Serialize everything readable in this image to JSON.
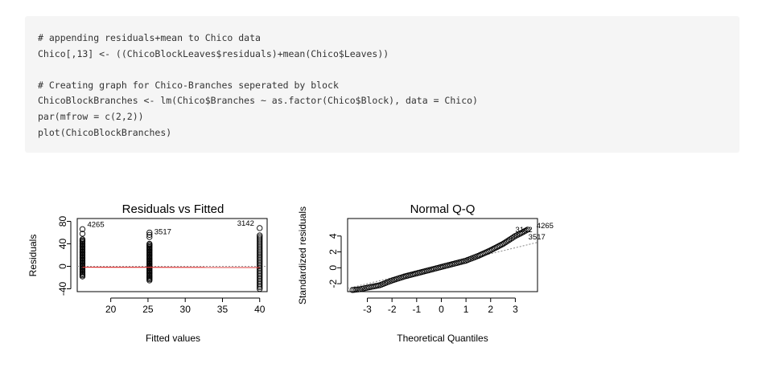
{
  "code": {
    "lines": [
      "# appending residuals+mean to Chico data",
      "Chico[,13] <- ((ChicoBlockLeaves$residuals)+mean(Chico$Leaves))",
      "",
      "# Creating graph for Chico-Branches seperated by block",
      "ChicoBlockBranches <- lm(Chico$Branches ~ as.factor(Chico$Block), data = Chico)",
      "par(mfrow = c(2,2))",
      "plot(ChicoBlockBranches)"
    ]
  },
  "chart_data": [
    {
      "type": "scatter",
      "title": "Residuals vs Fitted",
      "xlabel": "Fitted values",
      "ylabel": "Residuals",
      "xlim": [
        15.5,
        41
      ],
      "ylim": [
        -45,
        85
      ],
      "xticks": [
        20,
        25,
        30,
        35,
        40
      ],
      "yticks": [
        -40,
        0,
        40,
        80
      ],
      "groups": [
        {
          "x": 16.2,
          "y_min": -18,
          "y_max": 48,
          "outliers": [
            58,
            66
          ]
        },
        {
          "x": 25.2,
          "y_min": -25,
          "y_max": 40,
          "outliers": [
            52,
            56,
            60
          ]
        },
        {
          "x": 40.0,
          "y_min": -40,
          "y_max": 55,
          "outliers": [
            68
          ]
        }
      ],
      "labeled_points": [
        {
          "label": "4265",
          "x": 16.2,
          "y": 66
        },
        {
          "label": "3517",
          "x": 25.2,
          "y": 60
        },
        {
          "label": "3142",
          "x": 40.0,
          "y": 68
        }
      ],
      "reference_line_y": 0,
      "smooth_line": {
        "color": "#dd3333",
        "values": [
          [
            16.2,
            -1.5
          ],
          [
            40.0,
            -2.0
          ]
        ]
      },
      "colors": {
        "points": "#000000",
        "smooth": "#dd3333",
        "reference": "#999999"
      }
    },
    {
      "type": "scatter",
      "title": "Normal Q-Q",
      "xlabel": "Theoretical Quantiles",
      "ylabel": "Standardized residuals",
      "xlim": [
        -3.8,
        3.9
      ],
      "ylim": [
        -3.0,
        6.2
      ],
      "xticks": [
        -3,
        -2,
        -1,
        0,
        1,
        2,
        3
      ],
      "yticks": [
        -2,
        0,
        2,
        4
      ],
      "points_curve": [
        [
          -3.6,
          -2.8
        ],
        [
          -3.3,
          -2.7
        ],
        [
          -3.0,
          -2.5
        ],
        [
          -2.5,
          -2.2
        ],
        [
          -2.0,
          -1.6
        ],
        [
          -1.5,
          -1.1
        ],
        [
          -1.0,
          -0.7
        ],
        [
          -0.5,
          -0.3
        ],
        [
          0.0,
          0.1
        ],
        [
          0.5,
          0.5
        ],
        [
          1.0,
          0.9
        ],
        [
          1.5,
          1.5
        ],
        [
          2.0,
          2.2
        ],
        [
          2.5,
          3.0
        ],
        [
          2.8,
          3.6
        ],
        [
          3.0,
          4.0
        ],
        [
          3.2,
          4.3
        ],
        [
          3.5,
          4.8
        ]
      ],
      "reference_line": [
        [
          -3.8,
          -2.6
        ],
        [
          3.9,
          3.2
        ]
      ],
      "labeled_points": [
        {
          "label": "3142",
          "x": 3.2,
          "y": 4.3
        },
        {
          "label": "4265",
          "x": 3.6,
          "y": 5.0
        },
        {
          "label": "3517",
          "x": 3.4,
          "y": 4.2
        }
      ],
      "colors": {
        "points": "#000000",
        "reference": "#888888"
      }
    }
  ]
}
